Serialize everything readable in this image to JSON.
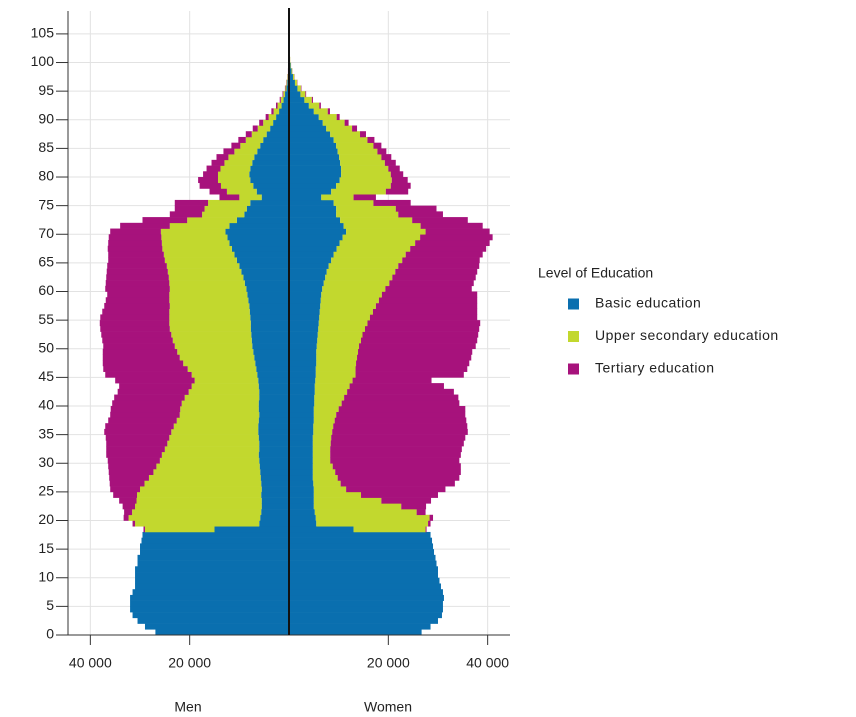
{
  "chart_data": {
    "type": "population-pyramid",
    "sides": [
      "Men",
      "Women"
    ],
    "legend_title": "Level of Education",
    "legend": "right",
    "grid": true,
    "xlim": [
      -44500,
      44500
    ],
    "xticks": [
      {
        "value": -40000,
        "label": "40 000"
      },
      {
        "value": -20000,
        "label": "20 000"
      },
      {
        "value": 20000,
        "label": "20 000"
      },
      {
        "value": 40000,
        "label": "40 000"
      }
    ],
    "ylim": [
      0,
      109
    ],
    "yticks": [
      0,
      5,
      10,
      15,
      20,
      25,
      30,
      35,
      40,
      45,
      50,
      55,
      60,
      65,
      70,
      75,
      80,
      85,
      90,
      95,
      100,
      105
    ],
    "series": [
      {
        "name": "Basic education",
        "color": "#0a6faf",
        "men": [
          26900,
          29000,
          30500,
          31500,
          32000,
          32000,
          32000,
          31500,
          31000,
          31000,
          31000,
          31000,
          30500,
          30500,
          30000,
          30000,
          29700,
          29500,
          15000,
          6000,
          5800,
          5600,
          5500,
          5500,
          5600,
          5500,
          5600,
          5700,
          5800,
          5900,
          6000,
          6100,
          6000,
          6000,
          6100,
          6200,
          6200,
          6100,
          6000,
          6100,
          6100,
          6000,
          6000,
          6100,
          6200,
          6400,
          6600,
          6800,
          7000,
          7200,
          7400,
          7500,
          7600,
          7700,
          7700,
          7800,
          7900,
          8000,
          8200,
          8400,
          8600,
          8900,
          9200,
          9600,
          10000,
          10500,
          11000,
          11500,
          12000,
          12400,
          12800,
          12000,
          10500,
          9000,
          8500,
          7800,
          5500,
          6500,
          7200,
          7800,
          8000,
          7800,
          7400,
          7000,
          6400,
          5800,
          5200,
          4500,
          3800,
          3200,
          2600,
          2000,
          1500,
          1100,
          800,
          500,
          350,
          220,
          140,
          90,
          50,
          30,
          20,
          10,
          5,
          3
        ],
        "women": [
          26700,
          28500,
          30000,
          30800,
          31000,
          31000,
          31200,
          31000,
          30600,
          30300,
          30000,
          30000,
          29700,
          29500,
          29200,
          29000,
          28800,
          28500,
          13000,
          5500,
          5400,
          5200,
          5000,
          5000,
          5000,
          5000,
          4900,
          4800,
          4800,
          4800,
          4800,
          4800,
          4800,
          4800,
          4800,
          4900,
          4900,
          5000,
          5000,
          5000,
          5100,
          5100,
          5200,
          5200,
          5300,
          5400,
          5400,
          5500,
          5500,
          5500,
          5600,
          5700,
          5800,
          5900,
          6000,
          6100,
          6200,
          6300,
          6400,
          6500,
          6700,
          7000,
          7300,
          7600,
          8000,
          8500,
          9000,
          9600,
          10200,
          10800,
          11500,
          11000,
          10300,
          9500,
          9500,
          9000,
          6500,
          8500,
          9500,
          10200,
          10500,
          10500,
          10300,
          10100,
          9800,
          9500,
          9000,
          8300,
          7500,
          6800,
          6000,
          5000,
          4000,
          3100,
          2300,
          1700,
          1200,
          800,
          500,
          300,
          180,
          100,
          50,
          25,
          10,
          5
        ]
      },
      {
        "name": "Upper secondary education",
        "color": "#c2d82e",
        "men": [
          0,
          0,
          0,
          0,
          0,
          0,
          0,
          0,
          0,
          0,
          0,
          0,
          0,
          0,
          0,
          0,
          0,
          0,
          14000,
          25000,
          26500,
          26000,
          25500,
          25200,
          25000,
          24500,
          23500,
          22500,
          21500,
          20800,
          20000,
          19500,
          19000,
          18500,
          18000,
          17500,
          17000,
          16500,
          16000,
          15800,
          15500,
          15000,
          14200,
          13500,
          12800,
          13200,
          13800,
          14500,
          15000,
          15300,
          15600,
          15900,
          16100,
          16300,
          16400,
          16300,
          16200,
          16000,
          15900,
          15700,
          15400,
          15200,
          15000,
          14800,
          14600,
          14500,
          14200,
          14000,
          13600,
          13300,
          13000,
          12000,
          10000,
          8500,
          8500,
          8500,
          4500,
          6000,
          6500,
          6500,
          6300,
          6000,
          5600,
          5200,
          4600,
          4000,
          3500,
          3000,
          2500,
          2000,
          1500,
          1100,
          800,
          550,
          350,
          220,
          140,
          80,
          50,
          30,
          15,
          8,
          5,
          3,
          2,
          1
        ],
        "women": [
          0,
          0,
          0,
          0,
          0,
          0,
          0,
          0,
          0,
          0,
          0,
          0,
          0,
          0,
          0,
          0,
          0,
          0,
          14500,
          22500,
          22900,
          20500,
          17600,
          13600,
          9500,
          6500,
          5500,
          5000,
          4500,
          4000,
          3500,
          3500,
          3500,
          3600,
          3700,
          3800,
          4000,
          4200,
          4500,
          5000,
          5500,
          6000,
          6500,
          7000,
          7500,
          8000,
          8000,
          8000,
          8200,
          8400,
          8500,
          8800,
          9000,
          9400,
          9800,
          10200,
          10700,
          11200,
          11700,
          12200,
          12700,
          13200,
          13500,
          13800,
          14000,
          14300,
          14500,
          14800,
          15200,
          15600,
          16000,
          15500,
          14500,
          12500,
          12000,
          8000,
          6500,
          11000,
          11000,
          10500,
          10000,
          9500,
          9000,
          8500,
          8000,
          7500,
          6800,
          6000,
          5200,
          4400,
          3600,
          2800,
          2100,
          1500,
          1000,
          700,
          450,
          280,
          170,
          100,
          60,
          30,
          15,
          8,
          4,
          2
        ]
      },
      {
        "name": "Tertiary education",
        "color": "#a7127c",
        "men": [
          0,
          0,
          0,
          0,
          0,
          0,
          0,
          0,
          0,
          0,
          0,
          0,
          0,
          0,
          0,
          0,
          0,
          0,
          300,
          500,
          1000,
          1600,
          2500,
          3500,
          4800,
          6000,
          7000,
          8000,
          9000,
          9700,
          10500,
          11200,
          11800,
          12300,
          12800,
          13500,
          13800,
          13800,
          14000,
          14000,
          14000,
          14200,
          14300,
          14600,
          16000,
          17400,
          17000,
          16200,
          15500,
          15000,
          14400,
          14200,
          14100,
          14000,
          14000,
          13900,
          13500,
          13200,
          12800,
          12500,
          13000,
          12800,
          12600,
          12300,
          12000,
          11400,
          11200,
          11000,
          10800,
          10600,
          10200,
          10000,
          9000,
          6500,
          6000,
          6700,
          4000,
          3500,
          4300,
          4000,
          3000,
          2800,
          2600,
          2400,
          2200,
          1800,
          1500,
          1200,
          1000,
          800,
          600,
          450,
          320,
          220,
          150,
          100,
          60,
          40,
          25,
          15,
          8,
          4,
          2,
          1,
          1,
          0
        ],
        "women": [
          0,
          0,
          0,
          0,
          0,
          0,
          0,
          0,
          0,
          0,
          0,
          0,
          0,
          0,
          0,
          0,
          0,
          0,
          200,
          500,
          700,
          1800,
          5000,
          10000,
          15500,
          20000,
          23000,
          24500,
          25300,
          25800,
          26000,
          26300,
          26500,
          26800,
          27000,
          27300,
          27000,
          26500,
          26000,
          25500,
          23700,
          23000,
          21500,
          19000,
          15900,
          21800,
          22500,
          22800,
          23000,
          23000,
          23500,
          23400,
          23300,
          23000,
          22700,
          21600,
          21000,
          20400,
          19800,
          19200,
          17400,
          17000,
          16800,
          16500,
          16300,
          15600,
          15500,
          15300,
          15000,
          14600,
          12900,
          12500,
          11200,
          9000,
          8200,
          7500,
          4500,
          4500,
          4000,
          3200,
          2500,
          2300,
          2200,
          2000,
          1800,
          1600,
          1400,
          1200,
          1000,
          800,
          600,
          450,
          320,
          220,
          150,
          100,
          60,
          40,
          25,
          15,
          8,
          4,
          2,
          1,
          1,
          0
        ]
      }
    ]
  }
}
